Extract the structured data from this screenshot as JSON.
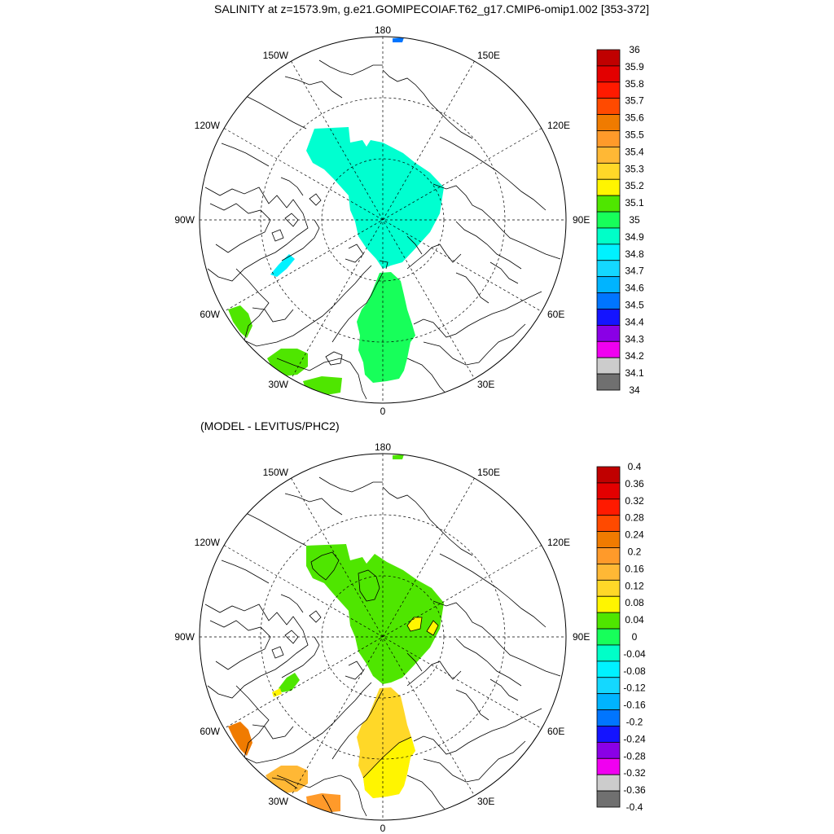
{
  "title": "SALINITY at z=1573.9m, g.e21.GOMIPECOIAF.T62_g17.CMIP6-omip1.002 [353-372]",
  "subtitle": "(MODEL - LEVITUS/PHC2)",
  "longitude_labels": {
    "top": "180",
    "bottom": "0",
    "left": "90W",
    "right": "90E",
    "upper_left_1": "150W",
    "upper_left_2": "120W",
    "upper_right_1": "150E",
    "upper_right_2": "120E",
    "lower_left_1": "60W",
    "lower_left_2": "30W",
    "lower_right_1": "60E",
    "lower_right_2": "30E"
  },
  "colorbar1": {
    "labels": [
      "36",
      "35.9",
      "35.8",
      "35.7",
      "35.6",
      "35.5",
      "35.4",
      "35.3",
      "35.2",
      "35.1",
      "35",
      "34.9",
      "34.8",
      "34.7",
      "34.6",
      "34.5",
      "34.4",
      "34.3",
      "34.2",
      "34.1",
      "34"
    ],
    "colors": [
      "#c00000",
      "#e30000",
      "#ff1a00",
      "#ff4a00",
      "#f07b00",
      "#ff9a2a",
      "#ffb835",
      "#ffd828",
      "#fff500",
      "#4fe600",
      "#17ff5a",
      "#00ffc8",
      "#00f2ff",
      "#14d8ff",
      "#00b4ff",
      "#0075ff",
      "#1414ff",
      "#8a00e6",
      "#f000f0",
      "#cccccc",
      "#707070"
    ]
  },
  "colorbar2": {
    "labels": [
      "0.4",
      "0.36",
      "0.32",
      "0.28",
      "0.24",
      "0.2",
      "0.16",
      "0.12",
      "0.08",
      "0.04",
      "0",
      "-0.04",
      "-0.08",
      "-0.12",
      "-0.16",
      "-0.2",
      "-0.24",
      "-0.28",
      "-0.32",
      "-0.36",
      "-0.4"
    ],
    "colors": [
      "#c00000",
      "#e30000",
      "#ff1a00",
      "#ff4a00",
      "#f07b00",
      "#ff9a2a",
      "#ffb835",
      "#ffd828",
      "#fff500",
      "#4fe600",
      "#17ff5a",
      "#00ffc8",
      "#00f2ff",
      "#14d8ff",
      "#00b4ff",
      "#0075ff",
      "#1414ff",
      "#8a00e6",
      "#f000f0",
      "#cccccc",
      "#707070"
    ]
  },
  "field_colors": {
    "top_main": "#00ffd0",
    "top_atlantic": "#17ff5a",
    "top_outer": "#4fe600",
    "top_baffin": "#00f2ff",
    "top_pacific": "#0075ff",
    "bottom_main": "#4fe600",
    "bottom_atlantic": "#ffd828",
    "bottom_yellow": "#fff500",
    "bottom_orange": "#ff9a2a",
    "bottom_lightorange": "#ffb835"
  }
}
